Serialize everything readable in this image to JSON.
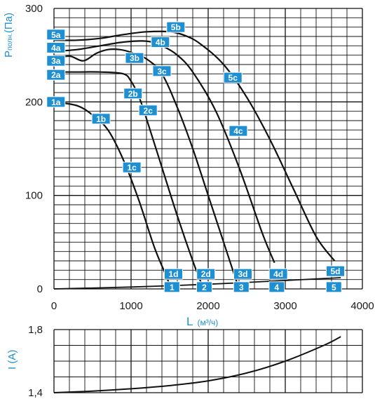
{
  "chart_data": [
    {
      "type": "line",
      "ylabel_main": "P",
      "ylabel_sub": "полн.",
      "ylabel_unit": "(Па)",
      "xlabel_main": "L",
      "xlabel_unit": "(м³/ч)",
      "xlim": [
        0,
        4000
      ],
      "ylim": [
        0,
        300
      ],
      "xticks": [
        0,
        1000,
        2000,
        3000,
        4000
      ],
      "yticks": [
        0,
        100,
        200,
        300
      ],
      "grid": true,
      "series": [
        {
          "name": "1",
          "x": [
            0,
            300,
            500,
            700,
            900,
            1100,
            1300,
            1450,
            1520
          ],
          "y": [
            200,
            196,
            186,
            170,
            138,
            95,
            45,
            15,
            0
          ]
        },
        {
          "name": "2",
          "x": [
            0,
            300,
            600,
            900,
            1000,
            1100,
            1200,
            1400,
            1600,
            1800,
            1940
          ],
          "y": [
            232,
            232,
            232,
            230,
            222,
            206,
            182,
            130,
            78,
            30,
            0
          ]
        },
        {
          "name": "3",
          "x": [
            0,
            200,
            380,
            550,
            700,
            850,
            1000,
            1200,
            1400,
            1600,
            1800,
            2000,
            2200,
            2400
          ],
          "y": [
            246,
            249,
            244,
            252,
            256,
            256,
            253,
            246,
            230,
            194,
            150,
            100,
            50,
            0
          ]
        },
        {
          "name": "4",
          "x": [
            0,
            300,
            600,
            900,
            1200,
            1400,
            1600,
            1800,
            2100,
            2400,
            2700,
            2860
          ],
          "y": [
            254,
            256,
            260,
            264,
            265,
            260,
            250,
            232,
            190,
            130,
            60,
            28
          ]
        },
        {
          "name": "5",
          "x": [
            0,
            300,
            600,
            900,
            1200,
            1500,
            1700,
            1900,
            2200,
            2500,
            2800,
            3100,
            3400,
            3640
          ],
          "y": [
            266,
            266,
            268,
            272,
            275,
            275,
            271,
            262,
            240,
            205,
            160,
            108,
            56,
            30
          ]
        },
        {
          "name": "network",
          "x": [
            0,
            1000,
            2000,
            3000,
            3720
          ],
          "y": [
            0,
            2,
            5,
            9,
            12
          ]
        }
      ],
      "markers": [
        {
          "label": "1a",
          "x": 25,
          "y": 200
        },
        {
          "label": "1b",
          "x": 610,
          "y": 182
        },
        {
          "label": "1c",
          "x": 1010,
          "y": 130
        },
        {
          "label": "1d",
          "x": 1550,
          "y": 16
        },
        {
          "label": "1",
          "x": 1530,
          "y": 2
        },
        {
          "label": "2a",
          "x": 25,
          "y": 229
        },
        {
          "label": "2b",
          "x": 1025,
          "y": 209
        },
        {
          "label": "2c",
          "x": 1220,
          "y": 191
        },
        {
          "label": "2d",
          "x": 1970,
          "y": 16
        },
        {
          "label": "2",
          "x": 1950,
          "y": 2
        },
        {
          "label": "3a",
          "x": 25,
          "y": 244
        },
        {
          "label": "3b",
          "x": 1045,
          "y": 247
        },
        {
          "label": "3c",
          "x": 1400,
          "y": 233
        },
        {
          "label": "3d",
          "x": 2450,
          "y": 16
        },
        {
          "label": "3",
          "x": 2430,
          "y": 2
        },
        {
          "label": "4a",
          "x": 25,
          "y": 258
        },
        {
          "label": "4b",
          "x": 1380,
          "y": 264
        },
        {
          "label": "4c",
          "x": 2390,
          "y": 169
        },
        {
          "label": "4d",
          "x": 2910,
          "y": 16
        },
        {
          "label": "4",
          "x": 2890,
          "y": 2
        },
        {
          "label": "5a",
          "x": 25,
          "y": 272
        },
        {
          "label": "5b",
          "x": 1580,
          "y": 280
        },
        {
          "label": "5c",
          "x": 2320,
          "y": 226
        },
        {
          "label": "5d",
          "x": 3650,
          "y": 19
        },
        {
          "label": "5",
          "x": 3630,
          "y": 2
        }
      ]
    },
    {
      "type": "line",
      "ylabel": "I (A)",
      "xlim": [
        0,
        4000
      ],
      "ylim": [
        1.4,
        1.8
      ],
      "yticks": [
        "1,4",
        "1,8"
      ],
      "grid": true,
      "series": [
        {
          "name": "current",
          "x": [
            0,
            500,
            1000,
            1500,
            2000,
            2500,
            3000,
            3500,
            3720
          ],
          "y": [
            1.4,
            1.41,
            1.425,
            1.445,
            1.475,
            1.525,
            1.6,
            1.7,
            1.755
          ]
        }
      ]
    }
  ],
  "colors": {
    "line": "#111111",
    "grid": "#111111",
    "tag": "#1e8fd0",
    "axis_label": "#1e8fd0",
    "tick": "#1a1a1a"
  }
}
